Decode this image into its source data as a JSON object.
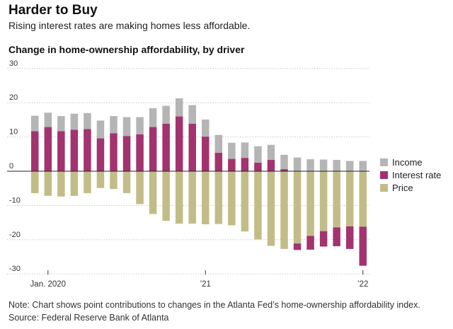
{
  "header": {
    "title": "Harder to Buy",
    "subtitle": "Rising interest rates are making homes less affordable."
  },
  "footer": {
    "note": "Note: Chart shows point contributions to changes in the Atlanta Fed’s home-ownership affordability index.",
    "source": "Source: Federal Reserve Bank of Atlanta"
  },
  "colors": {
    "income": "#b5b5b5",
    "interest": "#a3336f",
    "price": "#c2bd88",
    "grid": "#c8c8c8",
    "zero": "#222222"
  },
  "chart_data": {
    "type": "bar",
    "stacked": true,
    "title": "Change in home-ownership affordability, by driver",
    "xlabel": "",
    "ylabel": "",
    "ylim": [
      -30,
      30
    ],
    "yticks": [
      30,
      20,
      10,
      0,
      -10,
      -20,
      -30
    ],
    "xtick_labels": [
      {
        "index": 1,
        "label": "Jan. 2020"
      },
      {
        "index": 13,
        "label": "’21"
      },
      {
        "index": 25,
        "label": "’22"
      }
    ],
    "legend": [
      "Income",
      "Interest rate",
      "Price"
    ],
    "legend_position": "right",
    "categories": [
      "2019-12",
      "2020-01",
      "2020-02",
      "2020-03",
      "2020-04",
      "2020-05",
      "2020-06",
      "2020-07",
      "2020-08",
      "2020-09",
      "2020-10",
      "2020-11",
      "2020-12",
      "2021-01",
      "2021-02",
      "2021-03",
      "2021-04",
      "2021-05",
      "2021-06",
      "2021-07",
      "2021-08",
      "2021-09",
      "2021-10",
      "2021-11",
      "2021-12",
      "2022-01"
    ],
    "series": [
      {
        "name": "Income",
        "values": [
          4.5,
          4.2,
          4.4,
          4.7,
          4.7,
          5.2,
          5.0,
          5.5,
          5.0,
          5.5,
          5.2,
          5.3,
          5.4,
          5.0,
          5.2,
          4.7,
          4.5,
          4.8,
          4.4,
          4.2,
          4.0,
          3.5,
          3.4,
          3.3,
          3.0,
          3.0
        ]
      },
      {
        "name": "Interest rate",
        "values": [
          11.7,
          12.9,
          11.7,
          12.1,
          12.3,
          9.6,
          11.1,
          10.3,
          10.8,
          12.9,
          13.9,
          16.0,
          13.9,
          10.1,
          5.4,
          3.6,
          3.9,
          2.5,
          3.3,
          0.6,
          -1.9,
          -4.0,
          -4.5,
          -5.5,
          -6.6,
          -11.4
        ]
      },
      {
        "name": "Price",
        "values": [
          -6.4,
          -7.2,
          -7.4,
          -7.2,
          -6.4,
          -4.9,
          -5.2,
          -6.4,
          -9.6,
          -12.5,
          -14.5,
          -15.3,
          -15.3,
          -15.5,
          -15.4,
          -15.8,
          -17.6,
          -19.9,
          -21.8,
          -22.7,
          -21.1,
          -18.9,
          -17.5,
          -16.4,
          -16.1,
          -16.2
        ]
      }
    ]
  }
}
